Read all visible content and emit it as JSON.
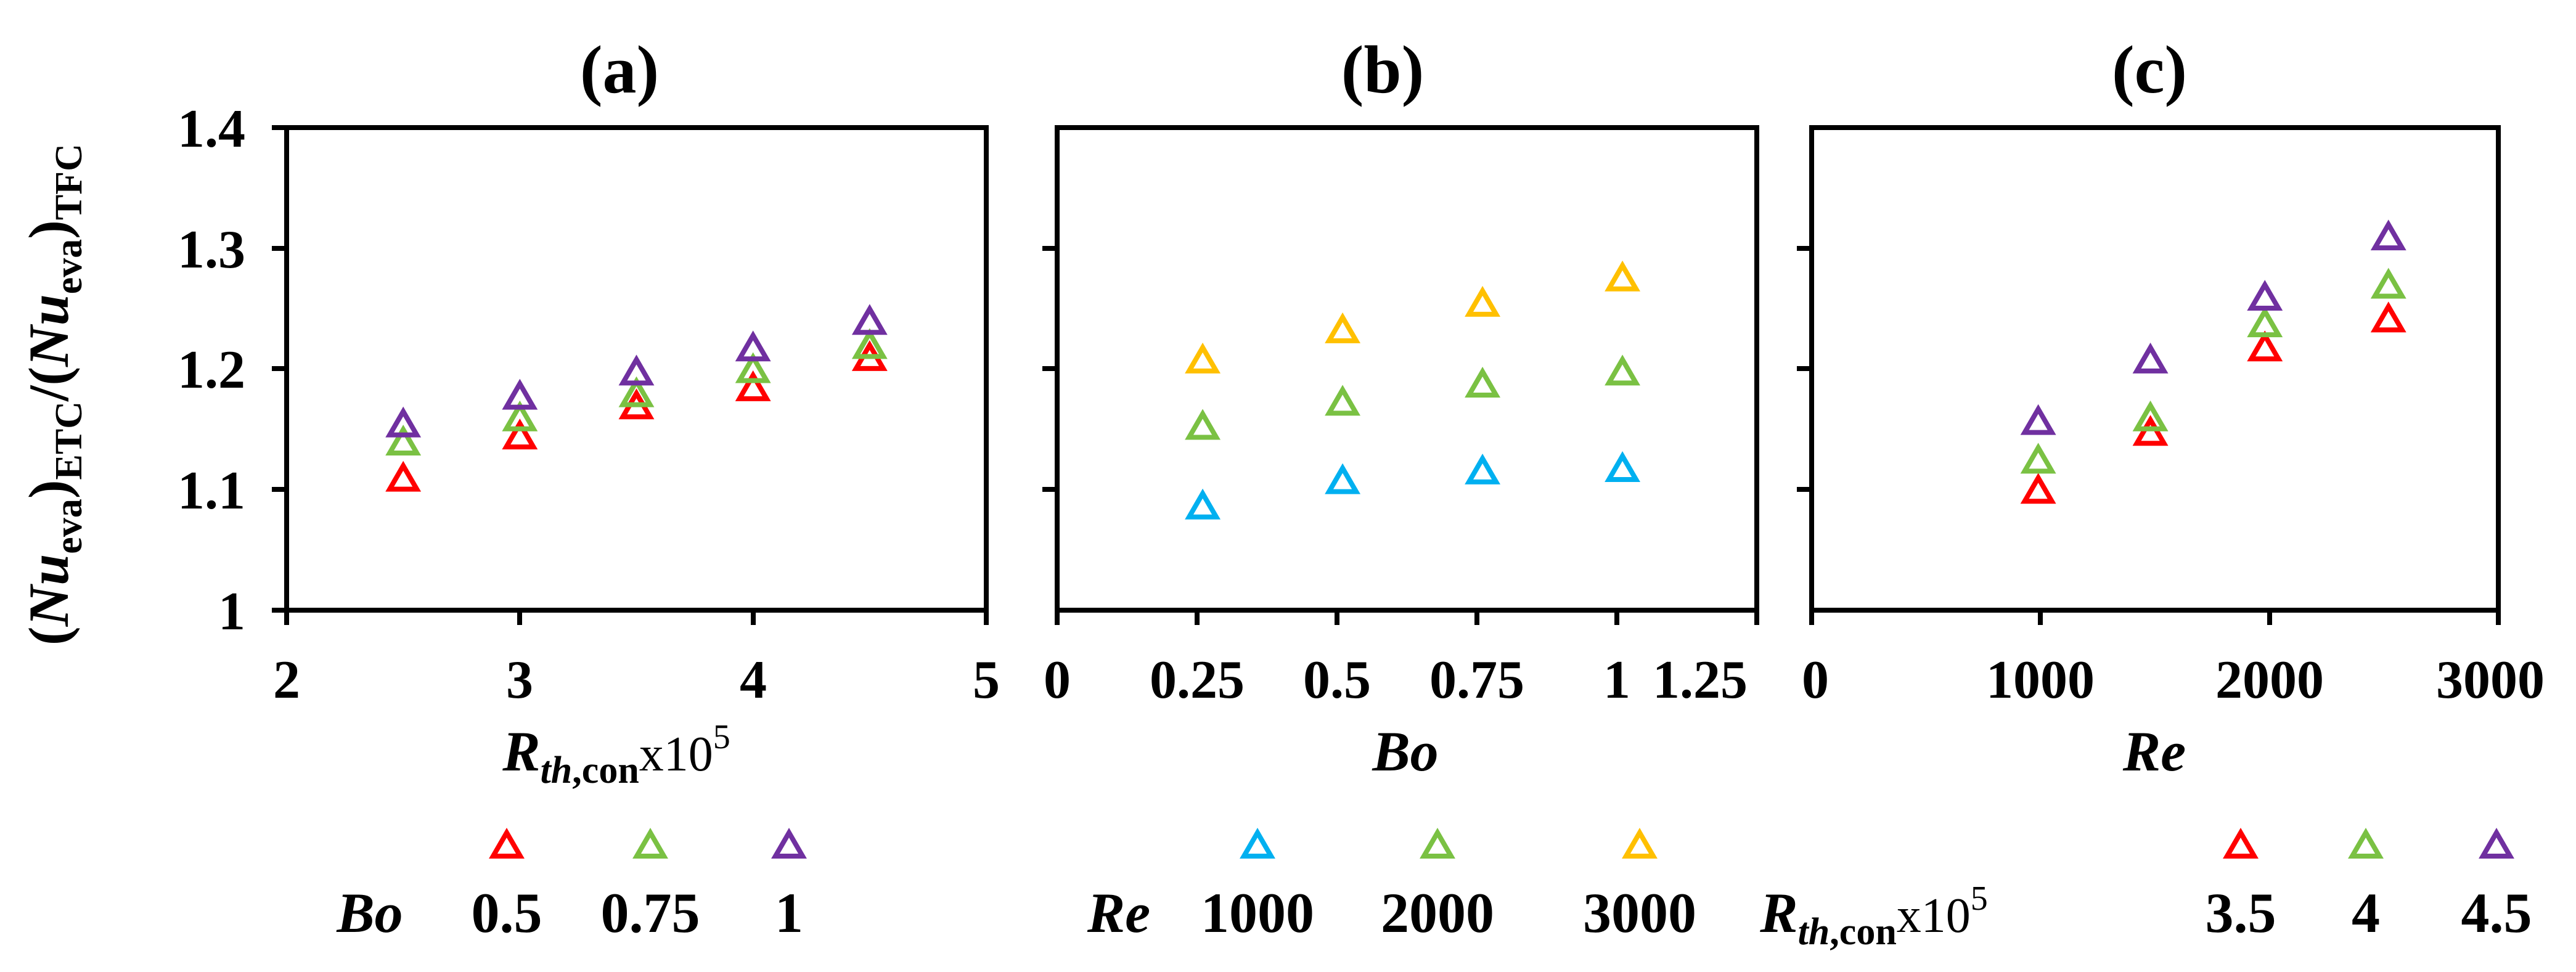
{
  "figure": {
    "ylabel": {
      "paren_open": "(",
      "nu1": "Nu",
      "eva1": "eva",
      "close1": ")",
      "etc": "ETC",
      "slash": "/(",
      "nu2": "Nu",
      "eva2": "eva",
      "close2": ")",
      "tfc": "TFC"
    }
  },
  "chart_data": [
    {
      "type": "scatter",
      "panel": "(a)",
      "title": "(a)",
      "xlabel": {
        "main": "R",
        "sub_italic": "th",
        "sub_rest": ",con",
        "times": "x10",
        "exp": "5"
      },
      "ylabel": "(Nu_eva)_ETC/(Nu_eva)_TFC",
      "xlim": [
        2,
        5
      ],
      "ylim": [
        1,
        1.4
      ],
      "xticks": [
        "2",
        "3",
        "4",
        "5"
      ],
      "yticks": [
        "1",
        "1.1",
        "1.2",
        "1.3",
        "1.4"
      ],
      "x": [
        2.5,
        3,
        3.5,
        4,
        4.5
      ],
      "legend": {
        "param": "Bo",
        "labels": [
          "0.5",
          "0.75",
          "1"
        ]
      },
      "series": [
        {
          "name": "Bo 0.5",
          "color": "#ff0000",
          "values": [
            1.11,
            1.145,
            1.17,
            1.185,
            1.21
          ]
        },
        {
          "name": "Bo 0.75",
          "color": "#7ac143",
          "values": [
            1.14,
            1.16,
            1.18,
            1.2,
            1.22
          ]
        },
        {
          "name": "Bo 1",
          "color": "#7030a0",
          "values": [
            1.155,
            1.178,
            1.198,
            1.218,
            1.24
          ]
        }
      ]
    },
    {
      "type": "scatter",
      "panel": "(b)",
      "title": "(b)",
      "xlabel": "Bo",
      "xlim": [
        0,
        1.25
      ],
      "ylim": [
        1,
        1.4
      ],
      "xticks": [
        "0",
        "0.25",
        "0.5",
        "0.75",
        "1",
        "1.25"
      ],
      "x": [
        0.26,
        0.51,
        0.76,
        1.01
      ],
      "legend": {
        "param": "Re",
        "labels": [
          "1000",
          "2000",
          "3000"
        ]
      },
      "series": [
        {
          "name": "Re 1000",
          "color": "#00b0f0",
          "values": [
            1.087,
            1.108,
            1.116,
            1.118
          ]
        },
        {
          "name": "Re 2000",
          "color": "#7ac143",
          "values": [
            1.153,
            1.173,
            1.188,
            1.198
          ]
        },
        {
          "name": "Re 3000",
          "color": "#ffc000",
          "values": [
            1.208,
            1.233,
            1.255,
            1.276
          ]
        }
      ]
    },
    {
      "type": "scatter",
      "panel": "(c)",
      "title": "(c)",
      "xlabel": "Re",
      "xlim": [
        0,
        3000
      ],
      "ylim": [
        1,
        1.4
      ],
      "xticks": [
        "0",
        "1000",
        "2000",
        "3000"
      ],
      "x": [
        990,
        1480,
        1980,
        2520
      ],
      "legend": {
        "param": {
          "main": "R",
          "sub_italic": "th",
          "sub_rest": ",con",
          "times": "x10",
          "exp": "5"
        },
        "labels": [
          "3.5",
          "4",
          "4.5"
        ]
      },
      "series": [
        {
          "name": "Rth,con 3.5",
          "color": "#ff0000",
          "values": [
            1.1,
            1.148,
            1.218,
            1.242
          ]
        },
        {
          "name": "Rth,con 4",
          "color": "#7ac143",
          "values": [
            1.125,
            1.16,
            1.238,
            1.27
          ]
        },
        {
          "name": "Rth,con 4.5",
          "color": "#7030a0",
          "values": [
            1.157,
            1.208,
            1.26,
            1.31
          ]
        }
      ]
    }
  ]
}
